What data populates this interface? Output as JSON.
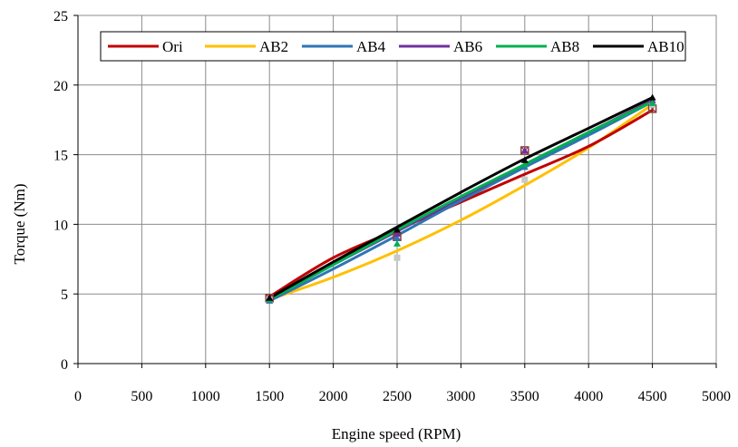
{
  "chart_data": {
    "type": "line",
    "title": "",
    "xlabel": "Engine speed (RPM)",
    "ylabel": "Torque (Nm)",
    "xlim": [
      0,
      5000
    ],
    "ylim": [
      0,
      25
    ],
    "xticks": [
      0,
      500,
      1000,
      1500,
      2000,
      2500,
      3000,
      3500,
      4000,
      4500,
      5000
    ],
    "yticks": [
      0,
      5,
      10,
      15,
      20,
      25
    ],
    "xtick_labels": [
      "0",
      "500",
      "1000",
      "1500",
      "2000",
      "2500",
      "3000",
      "3500",
      "4000",
      "4500",
      "5000"
    ],
    "ytick_labels": [
      "0",
      "5",
      "10",
      "15",
      "20",
      "25"
    ],
    "grid": true,
    "legend_position": "top",
    "series": [
      {
        "name": "Ori",
        "color": "#c00000",
        "curve": [
          [
            1500,
            4.8
          ],
          [
            2000,
            7.6
          ],
          [
            2500,
            9.6
          ],
          [
            3000,
            11.6
          ],
          [
            3500,
            13.6
          ],
          [
            4000,
            15.6
          ],
          [
            4500,
            18.2
          ]
        ],
        "markers": [
          [
            1500,
            4.7
          ],
          [
            2500,
            9.1
          ],
          [
            3500,
            15.3
          ],
          [
            4500,
            18.3
          ]
        ],
        "marker_color": "#8b3a3a"
      },
      {
        "name": "AB2",
        "color": "#ffc000",
        "curve": [
          [
            1500,
            4.6
          ],
          [
            2000,
            6.2
          ],
          [
            2500,
            8.1
          ],
          [
            3000,
            10.3
          ],
          [
            3500,
            12.8
          ],
          [
            4000,
            15.5
          ],
          [
            4500,
            18.6
          ]
        ],
        "markers": [
          [
            1500,
            4.6
          ],
          [
            2500,
            7.6
          ],
          [
            3500,
            13.2
          ],
          [
            4500,
            18.6
          ]
        ],
        "marker_color": "#c8c8c8"
      },
      {
        "name": "AB4",
        "color": "#2e75b6",
        "curve": [
          [
            1500,
            4.5
          ],
          [
            2000,
            6.8
          ],
          [
            2500,
            9.2
          ],
          [
            3000,
            11.7
          ],
          [
            3500,
            14.1
          ],
          [
            4000,
            16.4
          ],
          [
            4500,
            18.8
          ]
        ],
        "markers": [
          [
            1500,
            4.5
          ],
          [
            2500,
            9.0
          ],
          [
            3500,
            14.1
          ],
          [
            4500,
            18.7
          ]
        ],
        "marker_color": "#2e75b6"
      },
      {
        "name": "AB6",
        "color": "#7030a0",
        "curve": [
          [
            1500,
            4.6
          ],
          [
            2000,
            7.1
          ],
          [
            2500,
            9.5
          ],
          [
            3000,
            11.9
          ],
          [
            3500,
            14.3
          ],
          [
            4000,
            16.6
          ],
          [
            4500,
            18.9
          ]
        ],
        "markers": [
          [
            1500,
            4.7
          ],
          [
            2500,
            9.3
          ],
          [
            3500,
            15.3
          ],
          [
            4500,
            18.9
          ]
        ],
        "marker_color": "#7030a0"
      },
      {
        "name": "AB8",
        "color": "#00b050",
        "curve": [
          [
            1500,
            4.6
          ],
          [
            2000,
            7.1
          ],
          [
            2500,
            9.6
          ],
          [
            3000,
            12.0
          ],
          [
            3500,
            14.3
          ],
          [
            4000,
            16.6
          ],
          [
            4500,
            18.8
          ]
        ],
        "markers": [
          [
            1500,
            4.6
          ],
          [
            2500,
            8.6
          ],
          [
            3500,
            14.3
          ],
          [
            4500,
            18.7
          ]
        ],
        "marker_color": "#00b050"
      },
      {
        "name": "AB10",
        "color": "#000000",
        "curve": [
          [
            1500,
            4.7
          ],
          [
            2000,
            7.3
          ],
          [
            2500,
            9.8
          ],
          [
            3000,
            12.3
          ],
          [
            3500,
            14.7
          ],
          [
            4000,
            16.9
          ],
          [
            4500,
            19.1
          ]
        ],
        "markers": [
          [
            1500,
            4.7
          ],
          [
            2500,
            9.6
          ],
          [
            3500,
            14.6
          ],
          [
            4500,
            19.1
          ]
        ],
        "marker_color": "#000000"
      }
    ]
  }
}
